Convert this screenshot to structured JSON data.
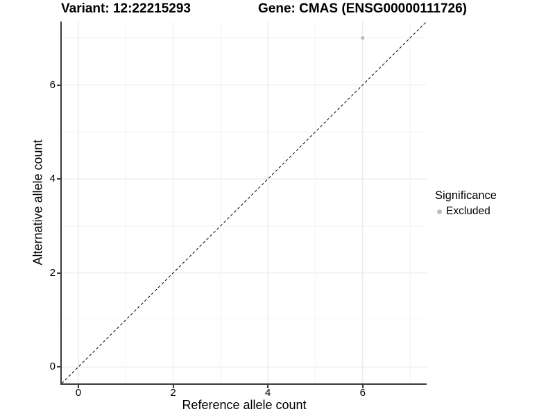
{
  "figure": {
    "title_variant": "Variant: 12:22215293",
    "title_gene": "Gene: CMAS (ENSG00000111726)"
  },
  "axes": {
    "x_label": "Reference allele count",
    "y_label": "Alternative allele count"
  },
  "legend": {
    "title": "Significance",
    "items": [
      {
        "label": "Excluded",
        "color": "#bebebe"
      }
    ]
  },
  "chart_data": {
    "type": "scatter",
    "title": "Variant: 12:22215293 — Gene: CMAS (ENSG00000111726)",
    "xlabel": "Reference allele count",
    "ylabel": "Alternative allele count",
    "xlim": [
      -0.35,
      7.35
    ],
    "ylim": [
      -0.35,
      7.35
    ],
    "x_ticks": [
      0,
      2,
      4,
      6
    ],
    "y_ticks": [
      0,
      2,
      4,
      6
    ],
    "grid_positions": [
      0,
      1,
      2,
      3,
      4,
      5,
      6,
      7
    ],
    "grid": true,
    "legend_position": "right",
    "series": [
      {
        "name": "Excluded",
        "color": "#bebebe",
        "points": [
          {
            "x": 6,
            "y": 7
          }
        ]
      }
    ],
    "identity_line": {
      "equation": "y = x",
      "style": "dashed",
      "color": "#000000",
      "from": [
        -0.35,
        -0.35
      ],
      "to": [
        7.35,
        7.35
      ]
    }
  },
  "colors": {
    "background": "#ffffff",
    "grid_major": "#e6e6e6",
    "grid_minor": "#f2f2f2",
    "axis_line": "#3a3a3a",
    "point": "#bebebe",
    "dashed_line": "#000000"
  }
}
